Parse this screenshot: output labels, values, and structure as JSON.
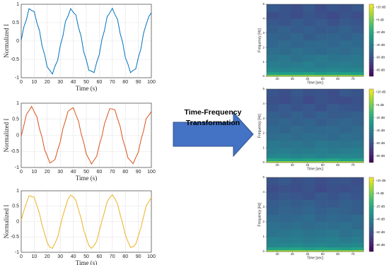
{
  "chart_data": [
    {
      "type": "line",
      "xlabel": "Time (s)",
      "ylabel": "Normalized I",
      "grid": true,
      "x": [
        0,
        2,
        4,
        6,
        8,
        10,
        12,
        14,
        16,
        18,
        20,
        22,
        24,
        26,
        28,
        30,
        32,
        34,
        36,
        38,
        40,
        42,
        44,
        46,
        48,
        50,
        52,
        54,
        56,
        58,
        60,
        62,
        64,
        66,
        68,
        70,
        72,
        74,
        76,
        78,
        80,
        82,
        84,
        86,
        88,
        90,
        92,
        94,
        96,
        98,
        100
      ],
      "series": [
        {
          "color": "#0072bd",
          "values": [
            0.02,
            0.38,
            0.58,
            0.88,
            0.83,
            0.8,
            0.5,
            0.29,
            -0.13,
            -0.37,
            -0.71,
            -0.8,
            -0.9,
            -0.68,
            -0.53,
            -0.13,
            0.13,
            0.53,
            0.68,
            0.88,
            0.78,
            0.71,
            0.37,
            0.13,
            -0.29,
            -0.51,
            -0.8,
            -0.82,
            -0.86,
            -0.58,
            -0.37,
            0.04,
            0.29,
            0.66,
            0.76,
            0.89,
            0.72,
            0.59,
            0.21,
            -0.05,
            -0.45,
            -0.63,
            -0.86,
            -0.8,
            -0.76,
            -0.45,
            -0.21,
            0.21,
            0.45,
            0.66,
            0.77
          ]
        }
      ],
      "xlim": [
        0,
        100
      ],
      "xticks": [
        0,
        10,
        20,
        30,
        40,
        50,
        60,
        70,
        80,
        90,
        100
      ],
      "ylim": [
        -1,
        1
      ],
      "yticks": [
        -1,
        -0.5,
        0,
        0.5,
        1
      ]
    },
    {
      "type": "line",
      "xlabel": "Time (s)",
      "ylabel": "Normalized I",
      "grid": true,
      "x": [
        0,
        2,
        4,
        6,
        8,
        10,
        12,
        14,
        16,
        18,
        20,
        22,
        24,
        26,
        28,
        30,
        32,
        34,
        36,
        38,
        40,
        42,
        44,
        46,
        48,
        50,
        52,
        54,
        56,
        58,
        60,
        62,
        64,
        66,
        68,
        70,
        72,
        74,
        76,
        78,
        80,
        82,
        84,
        86,
        88,
        90,
        92,
        94,
        96,
        98,
        100
      ],
      "series": [
        {
          "color": "#d95319",
          "values": [
            -0.03,
            0.3,
            0.65,
            0.77,
            0.9,
            0.73,
            0.58,
            0.21,
            -0.06,
            -0.45,
            -0.64,
            -0.86,
            -0.81,
            -0.75,
            -0.46,
            -0.2,
            0.2,
            0.46,
            0.75,
            0.81,
            0.86,
            0.64,
            0.44,
            0.06,
            -0.22,
            -0.58,
            -0.73,
            -0.89,
            -0.77,
            -0.65,
            -0.3,
            -0.03,
            0.36,
            0.59,
            0.83,
            0.82,
            0.79,
            0.52,
            0.28,
            -0.12,
            -0.38,
            -0.7,
            -0.79,
            -0.88,
            -0.69,
            -0.52,
            -0.14,
            0.14,
            0.52,
            0.62,
            0.74
          ]
        }
      ],
      "xlim": [
        0,
        100
      ],
      "xticks": [
        0,
        10,
        20,
        30,
        40,
        50,
        60,
        70,
        80,
        90,
        100
      ],
      "ylim": [
        -1,
        1
      ],
      "yticks": [
        -1,
        -0.5,
        0,
        0.5,
        1
      ]
    },
    {
      "type": "line",
      "xlabel": "Time (s)",
      "ylabel": "Normalized I",
      "grid": true,
      "x": [
        0,
        2,
        4,
        6,
        8,
        10,
        12,
        14,
        16,
        18,
        20,
        22,
        24,
        26,
        28,
        30,
        32,
        34,
        36,
        38,
        40,
        42,
        44,
        46,
        48,
        50,
        52,
        54,
        56,
        58,
        60,
        62,
        64,
        66,
        68,
        70,
        72,
        74,
        76,
        78,
        80,
        82,
        84,
        86,
        88,
        90,
        92,
        94,
        96,
        98,
        100
      ],
      "series": [
        {
          "color": "#edb120",
          "values": [
            0.04,
            0.35,
            0.6,
            0.84,
            0.81,
            0.79,
            0.52,
            0.27,
            -0.11,
            -0.39,
            -0.69,
            -0.84,
            -0.87,
            -0.7,
            -0.51,
            -0.15,
            0.19,
            0.47,
            0.74,
            0.86,
            0.8,
            0.69,
            0.39,
            0.11,
            -0.27,
            -0.53,
            -0.78,
            -0.87,
            -0.78,
            -0.64,
            -0.31,
            0.02,
            0.31,
            0.64,
            0.78,
            0.87,
            0.74,
            0.57,
            0.23,
            -0.07,
            -0.43,
            -0.65,
            -0.84,
            -0.82,
            -0.74,
            -0.47,
            -0.19,
            0.15,
            0.51,
            0.64,
            0.78
          ]
        }
      ],
      "xlim": [
        0,
        100
      ],
      "xticks": [
        0,
        10,
        20,
        30,
        40,
        50,
        60,
        70,
        80,
        90,
        100
      ],
      "ylim": [
        -1,
        1
      ],
      "yticks": [
        -1,
        -0.5,
        0,
        0.5,
        1
      ]
    },
    {
      "type": "heatmap",
      "xlabel": "Time [sec]",
      "ylabel": "Frequency [Hz]",
      "x": [
        13,
        21,
        29,
        37,
        45,
        53,
        61,
        69,
        77
      ],
      "y": [
        0,
        0.1,
        0.3,
        0.6,
        1,
        1.5,
        2,
        2.5,
        3,
        3.5,
        4,
        4.5,
        5
      ],
      "z": [
        [
          8,
          10,
          9,
          11,
          10,
          9,
          10,
          8
        ],
        [
          -24,
          -26,
          -25,
          -23,
          -27,
          -25,
          -24,
          -26
        ],
        [
          -36,
          -38,
          -37,
          -39,
          -38,
          -36,
          -38,
          -37
        ],
        [
          -41,
          -43,
          -42,
          -40,
          -44,
          -42,
          -41,
          -43
        ],
        [
          -45,
          -44,
          -47,
          -45,
          -43,
          -46,
          -45,
          -44
        ],
        [
          -48,
          -50,
          -47,
          -49,
          -51,
          -48,
          -50,
          -47
        ],
        [
          -52,
          -50,
          -53,
          -51,
          -50,
          -52,
          -49,
          -51
        ],
        [
          -53,
          -55,
          -52,
          -56,
          -54,
          -53,
          -55,
          -52
        ],
        [
          -56,
          -54,
          -57,
          -55,
          -58,
          -56,
          -54,
          -57
        ],
        [
          -58,
          -60,
          -56,
          -59,
          -57,
          -61,
          -58,
          -59
        ],
        [
          -62,
          -60,
          -63,
          -59,
          -61,
          -64,
          -60,
          -62
        ],
        [
          -57,
          -60,
          -62,
          -58,
          -63,
          -59,
          -61,
          -58
        ]
      ],
      "xlim": [
        13,
        77
      ],
      "xticks": [
        20,
        30,
        40,
        50,
        60,
        70
      ],
      "ylim": [
        0,
        5
      ],
      "yticks": [
        0,
        1,
        2,
        3,
        4,
        5
      ],
      "colorbar": {
        "lim": [
          -90,
          25
        ],
        "colors": [
          "#440154",
          "#482878",
          "#3e4989",
          "#31688e",
          "#26828e",
          "#1f9e89",
          "#35b779",
          "#6ece58",
          "#b5de2b",
          "#fde725"
        ],
        "ticks": [
          {
            "value": 20,
            "label": "+20 dB"
          },
          {
            "value": 0,
            "label": "+0 dB"
          },
          {
            "value": -20,
            "label": "-20 dB"
          },
          {
            "value": -40,
            "label": "-40 dB"
          },
          {
            "value": -60,
            "label": "-60 dB"
          },
          {
            "value": -80,
            "label": "-80 dB"
          }
        ]
      }
    },
    {
      "type": "heatmap",
      "xlabel": "Time [sec]",
      "ylabel": "Frequency [Hz]",
      "x": [
        13,
        21,
        29,
        37,
        45,
        53,
        61,
        69,
        77
      ],
      "y": [
        0,
        0.1,
        0.3,
        0.6,
        1,
        1.5,
        2,
        2.5,
        3,
        3.5,
        4,
        4.5,
        5
      ],
      "z": [
        [
          9,
          11,
          10,
          8,
          10,
          11,
          9,
          10
        ],
        [
          -23,
          -25,
          -26,
          -24,
          -25,
          -23,
          -26,
          -25
        ],
        [
          -37,
          -36,
          -38,
          -37,
          -39,
          -37,
          -36,
          -38
        ],
        [
          -42,
          -41,
          -43,
          -42,
          -41,
          -43,
          -42,
          -40
        ],
        [
          -44,
          -46,
          -45,
          -47,
          -44,
          -45,
          -46,
          -45
        ],
        [
          -49,
          -48,
          -50,
          -48,
          -49,
          -51,
          -48,
          -49
        ],
        [
          -51,
          -53,
          -50,
          -52,
          -51,
          -50,
          -53,
          -50
        ],
        [
          -54,
          -52,
          -55,
          -53,
          -56,
          -54,
          -52,
          -54
        ],
        [
          -55,
          -57,
          -54,
          -58,
          -55,
          -57,
          -56,
          -55
        ],
        [
          -59,
          -57,
          -60,
          -58,
          -61,
          -57,
          -59,
          -60
        ],
        [
          -61,
          -63,
          -60,
          -64,
          -60,
          -62,
          -63,
          -61
        ],
        [
          -59,
          -62,
          -58,
          -61,
          -60,
          -63,
          -58,
          -60
        ]
      ],
      "xlim": [
        13,
        77
      ],
      "xticks": [
        20,
        30,
        40,
        50,
        60,
        70
      ],
      "ylim": [
        0,
        5
      ],
      "yticks": [
        0,
        1,
        2,
        3,
        4,
        5
      ],
      "colorbar": {
        "lim": [
          -90,
          25
        ],
        "colors": [
          "#440154",
          "#482878",
          "#3e4989",
          "#31688e",
          "#26828e",
          "#1f9e89",
          "#35b779",
          "#6ece58",
          "#b5de2b",
          "#fde725"
        ],
        "ticks": [
          {
            "value": 20,
            "label": "+20 dB"
          },
          {
            "value": 0,
            "label": "+0 dB"
          },
          {
            "value": -20,
            "label": "-20 dB"
          },
          {
            "value": -40,
            "label": "-40 dB"
          },
          {
            "value": -60,
            "label": "-60 dB"
          },
          {
            "value": -80,
            "label": "-80 dB"
          }
        ]
      }
    },
    {
      "type": "heatmap",
      "xlabel": "Time [sec]",
      "ylabel": "Frequency [Hz]",
      "x": [
        13,
        21,
        29,
        37,
        45,
        53,
        61,
        69,
        77
      ],
      "y": [
        0,
        0.1,
        0.3,
        0.6,
        1,
        1.5,
        2,
        2.5,
        3,
        3.5,
        4,
        4.5,
        5
      ],
      "z": [
        [
          10,
          9,
          11,
          10,
          8,
          10,
          9,
          11
        ],
        [
          -25,
          -24,
          -23,
          -26,
          -24,
          -25,
          -27,
          -24
        ],
        [
          -38,
          -37,
          -36,
          -38,
          -37,
          -39,
          -37,
          -36
        ],
        [
          -40,
          -42,
          -41,
          -43,
          -42,
          -40,
          -43,
          -41
        ],
        [
          -46,
          -45,
          -44,
          -46,
          -45,
          -44,
          -47,
          -45
        ],
        [
          -47,
          -49,
          -48,
          -50,
          -48,
          -49,
          -47,
          -50
        ],
        [
          -50,
          -52,
          -51,
          -49,
          -53,
          -51,
          -52,
          -50
        ],
        [
          -55,
          -53,
          -54,
          -52,
          -55,
          -53,
          -54,
          -56
        ],
        [
          -57,
          -55,
          -56,
          -54,
          -57,
          -58,
          -55,
          -56
        ],
        [
          -60,
          -58,
          -59,
          -61,
          -58,
          -60,
          -57,
          -59
        ],
        [
          -63,
          -61,
          -62,
          -60,
          -64,
          -61,
          -62,
          -60
        ],
        [
          -60,
          -58,
          -61,
          -59,
          -62,
          -60,
          -59,
          -62
        ]
      ],
      "xlim": [
        13,
        77
      ],
      "xticks": [
        20,
        30,
        40,
        50,
        60,
        70
      ],
      "ylim": [
        0,
        5
      ],
      "yticks": [
        0,
        1,
        2,
        3,
        4,
        5
      ],
      "colorbar": {
        "lim": [
          -90,
          25
        ],
        "colors": [
          "#440154",
          "#482878",
          "#3e4989",
          "#31688e",
          "#26828e",
          "#1f9e89",
          "#35b779",
          "#6ece58",
          "#b5de2b",
          "#fde725"
        ],
        "ticks": [
          {
            "value": 20,
            "label": "+20 dB"
          },
          {
            "value": 0,
            "label": "+0 dB"
          },
          {
            "value": -20,
            "label": "-20 dB"
          },
          {
            "value": -40,
            "label": "-40 dB"
          },
          {
            "value": -60,
            "label": "-60 dB"
          },
          {
            "value": -80,
            "label": "-80 dB"
          }
        ]
      }
    }
  ],
  "annotation": {
    "lines": [
      "Time-Frequency",
      "Transformation"
    ]
  }
}
